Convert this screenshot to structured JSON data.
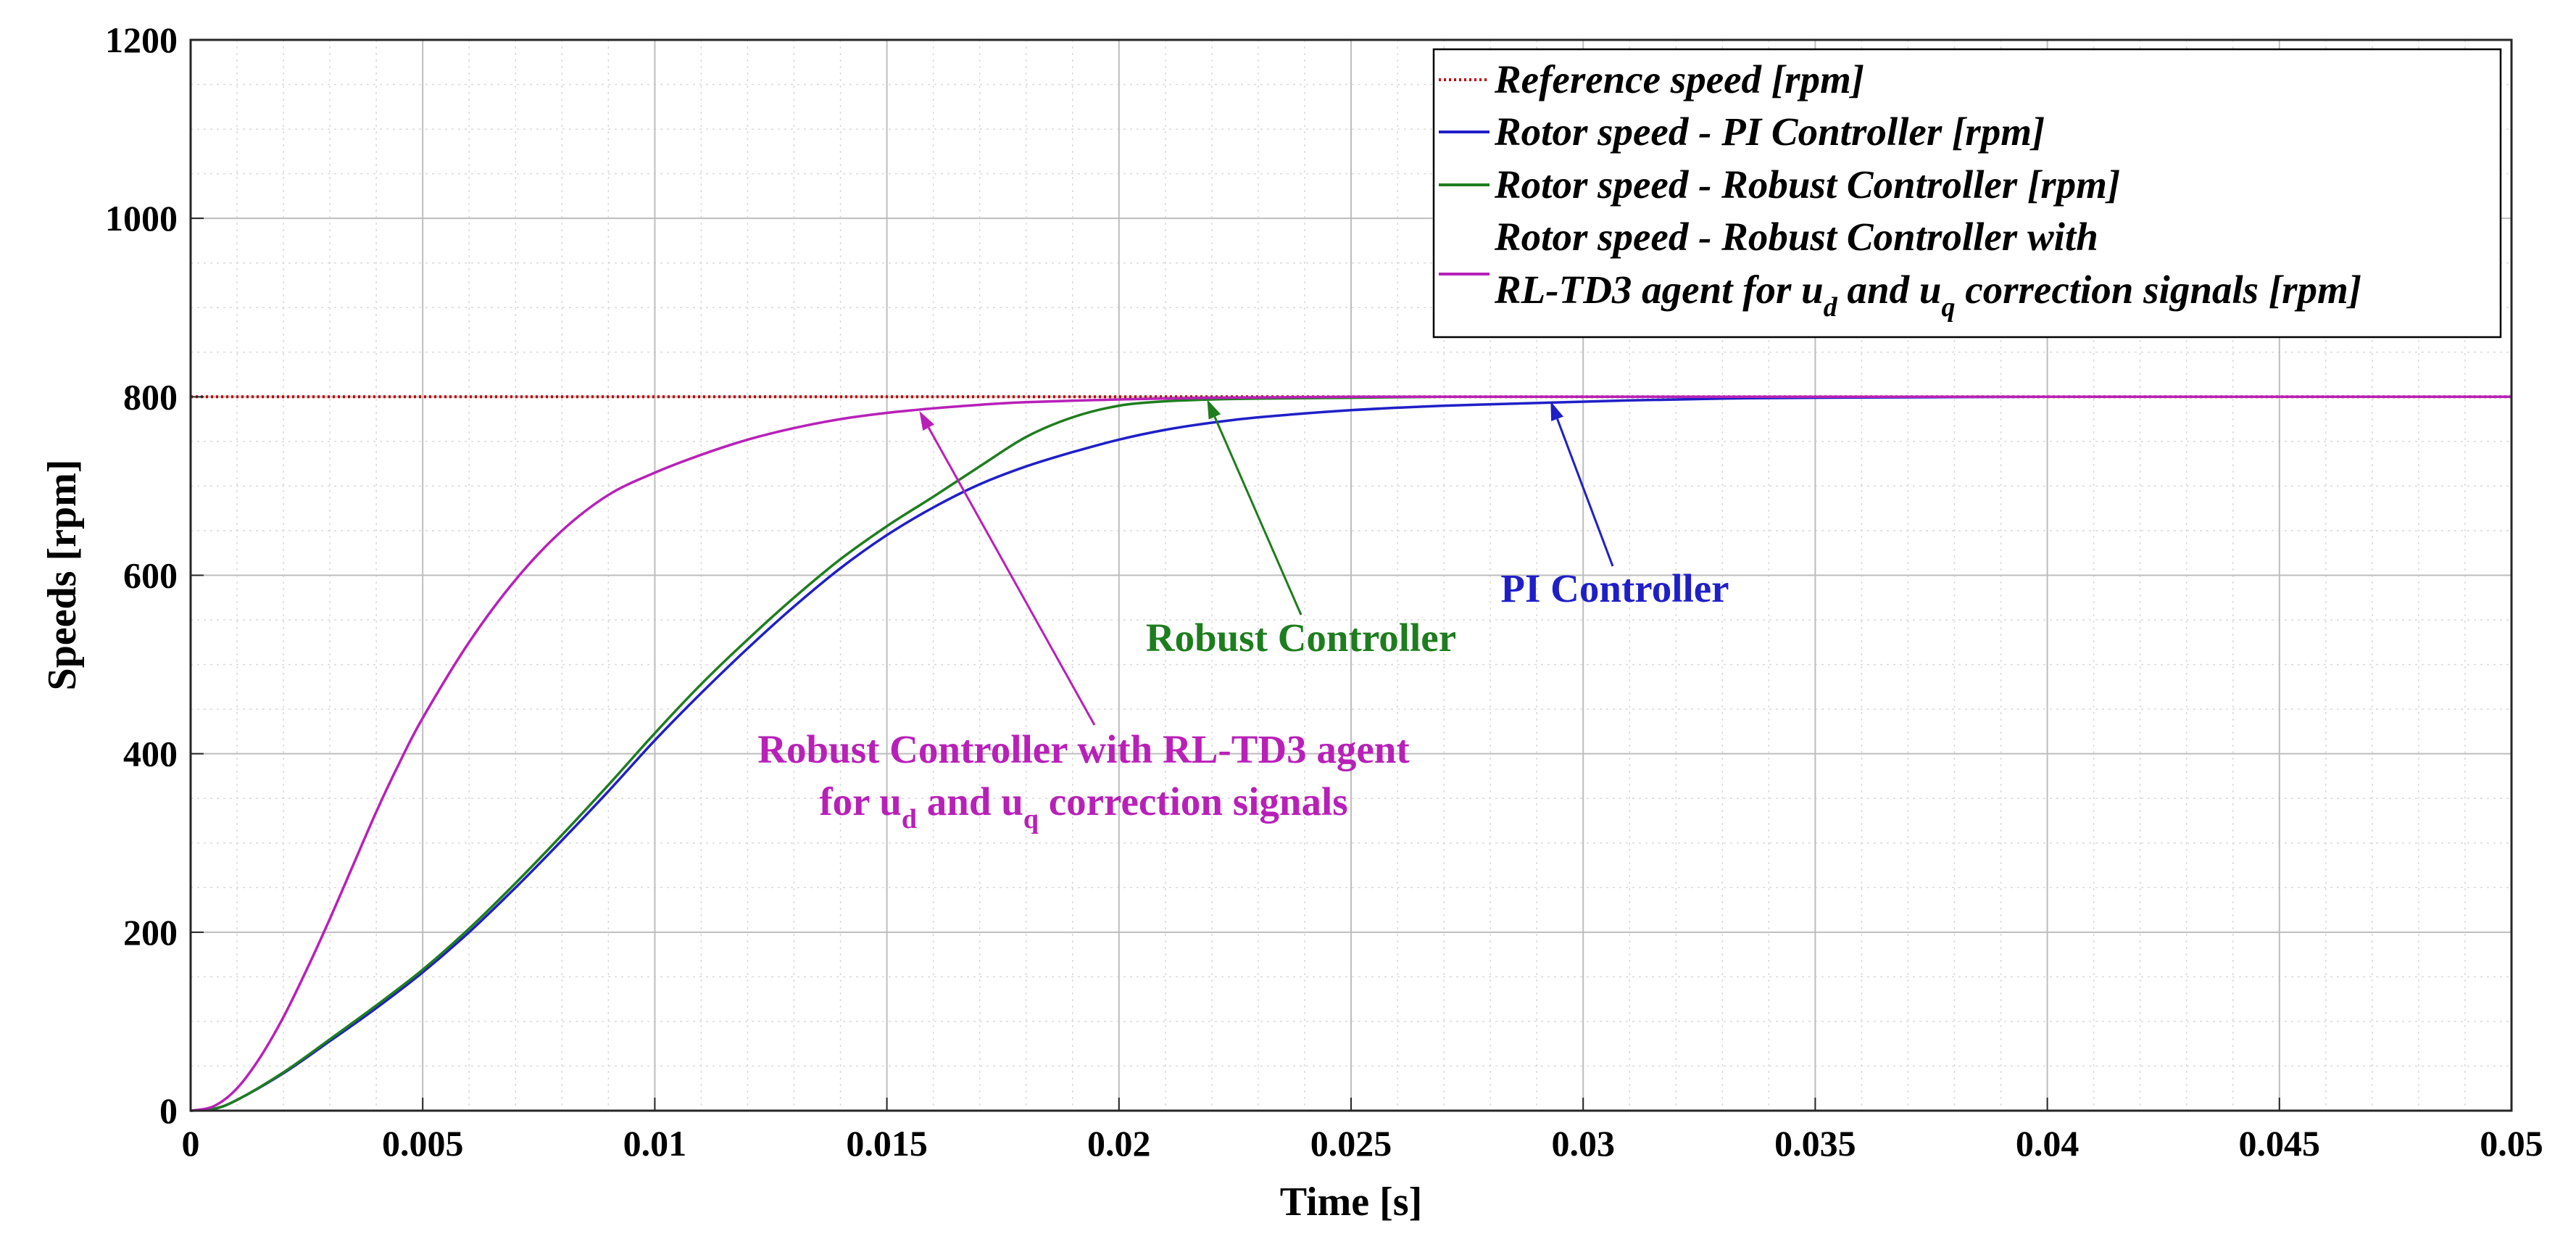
{
  "chart_data": {
    "type": "line",
    "title": "",
    "xlabel": "Time [s]",
    "ylabel": "Speeds [rpm]",
    "xlim": [
      0,
      0.05
    ],
    "ylim": [
      0,
      1200
    ],
    "xticks": [
      0,
      0.005,
      0.01,
      0.015,
      0.02,
      0.025,
      0.03,
      0.035,
      0.04,
      0.045,
      0.05
    ],
    "xtick_labels": [
      "0",
      "0.005",
      "0.01",
      "0.015",
      "0.02",
      "0.025",
      "0.03",
      "0.035",
      "0.04",
      "0.045",
      "0.05"
    ],
    "yticks": [
      0,
      200,
      400,
      600,
      800,
      1000,
      1200
    ],
    "ytick_labels": [
      "0",
      "200",
      "400",
      "600",
      "800",
      "1000",
      "1200"
    ],
    "grid": true,
    "minor_grid": true,
    "legend_position": "top-right",
    "series": [
      {
        "name": "Reference speed [rpm]",
        "color": "#c00000",
        "style": "dotted",
        "x": [
          0,
          0.05
        ],
        "y": [
          800,
          800
        ]
      },
      {
        "name": "Rotor speed - PI Controller [rpm]",
        "color": "#1f1fc8",
        "style": "solid",
        "x": [
          0,
          0.0005,
          0.001,
          0.002,
          0.003,
          0.004,
          0.005,
          0.006,
          0.007,
          0.008,
          0.009,
          0.01,
          0.011,
          0.012,
          0.013,
          0.014,
          0.015,
          0.016,
          0.017,
          0.018,
          0.019,
          0.02,
          0.021,
          0.022,
          0.023,
          0.025,
          0.027,
          0.029,
          0.031,
          0.033,
          0.035,
          0.04,
          0.045,
          0.05
        ],
        "y": [
          0,
          2,
          12,
          42,
          78,
          115,
          155,
          200,
          250,
          303,
          358,
          415,
          468,
          518,
          565,
          608,
          645,
          676,
          702,
          722,
          738,
          752,
          763,
          771,
          777,
          785,
          790,
          793,
          796,
          798,
          799,
          800,
          800,
          800
        ]
      },
      {
        "name": "Rotor speed - Robust Controller [rpm]",
        "color": "#1e7d1e",
        "style": "solid",
        "x": [
          0,
          0.0005,
          0.001,
          0.002,
          0.003,
          0.004,
          0.005,
          0.006,
          0.007,
          0.008,
          0.009,
          0.01,
          0.011,
          0.012,
          0.013,
          0.014,
          0.015,
          0.016,
          0.017,
          0.018,
          0.019,
          0.02,
          0.021,
          0.022,
          0.023,
          0.025,
          0.027,
          0.03,
          0.035,
          0.04,
          0.045,
          0.05
        ],
        "y": [
          0,
          2,
          12,
          43,
          80,
          118,
          158,
          204,
          255,
          309,
          365,
          423,
          478,
          528,
          575,
          618,
          655,
          688,
          722,
          755,
          777,
          790,
          795,
          797,
          798,
          799,
          800,
          800,
          800,
          800,
          800,
          800
        ]
      },
      {
        "name": "Rotor speed - Robust Controller with RL-TD3 agent for u_d and u_q correction signals [rpm]",
        "color": "#b820b8",
        "style": "solid",
        "x": [
          0,
          0.0005,
          0.001,
          0.0015,
          0.002,
          0.0025,
          0.003,
          0.0035,
          0.004,
          0.0045,
          0.005,
          0.006,
          0.007,
          0.008,
          0.009,
          0.01,
          0.011,
          0.012,
          0.013,
          0.014,
          0.015,
          0.016,
          0.017,
          0.018,
          0.02,
          0.022,
          0.025,
          0.03,
          0.035,
          0.04,
          0.045,
          0.05
        ],
        "y": [
          0,
          5,
          25,
          60,
          105,
          158,
          215,
          275,
          335,
          390,
          440,
          525,
          595,
          650,
          690,
          715,
          735,
          752,
          765,
          775,
          782,
          787,
          791,
          794,
          797,
          799,
          800,
          800,
          800,
          800,
          800,
          800
        ]
      }
    ],
    "legend_entries": {
      "ref": "Reference speed [rpm]",
      "pi": "Rotor speed - PI Controller [rpm]",
      "robust": "Rotor speed - Robust Controller [rpm]",
      "rl_line1": "Rotor speed - Robust Controller with",
      "rl_line2_a": "RL-TD3 agent for u",
      "rl_line2_sub_d": "d",
      "rl_line2_b": " and u",
      "rl_line2_sub_q": "q",
      "rl_line2_c": " correction signals [rpm]"
    },
    "annotations": {
      "pi": {
        "text": "PI Controller",
        "color": "#1f1fc8",
        "arrow_to": [
          0.0293,
          795
        ]
      },
      "robust": {
        "text": "Robust Controller",
        "color": "#1e7d1e",
        "arrow_to": [
          0.0219,
          797
        ]
      },
      "rl": {
        "line1": "Robust Controller with RL-TD3 agent",
        "line2_a": "for u",
        "line2_sub_d": "d",
        "line2_b": " and u",
        "line2_sub_q": "q",
        "line2_c": " correction signals",
        "color": "#b820b8",
        "arrow_to": [
          0.0157,
          784
        ]
      }
    }
  }
}
